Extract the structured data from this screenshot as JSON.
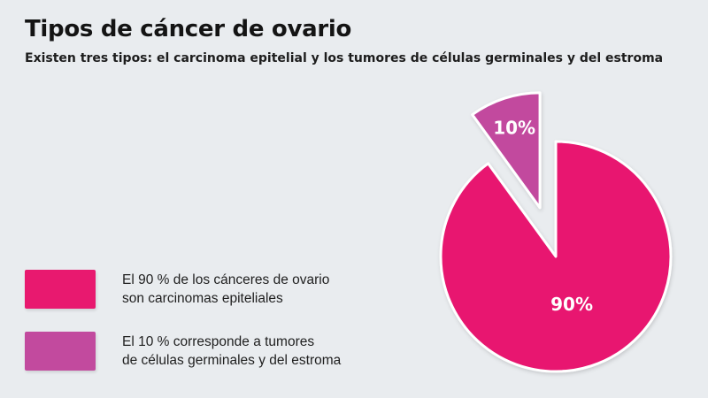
{
  "title": "Tipos de cáncer de ovario",
  "subtitle": "Existen tres tipos: el carcinoma epitelial y los tumores de células germinales y del estroma",
  "legend": [
    {
      "line1": "El 90 % de los cánceres de ovario",
      "line2": "son carcinomas epiteliales",
      "color": "#e8196f"
    },
    {
      "line1": "El 10 % corresponde a tumores",
      "line2": "de células germinales y del estroma",
      "color": "#c24a9e"
    }
  ],
  "chart_data": {
    "type": "pie",
    "slices": [
      {
        "label": "90%",
        "value": 90,
        "color": "#e8196f",
        "exploded": false
      },
      {
        "label": "10%",
        "value": 10,
        "color": "#c24a9e",
        "exploded": true
      }
    ],
    "legend_position": "left"
  }
}
